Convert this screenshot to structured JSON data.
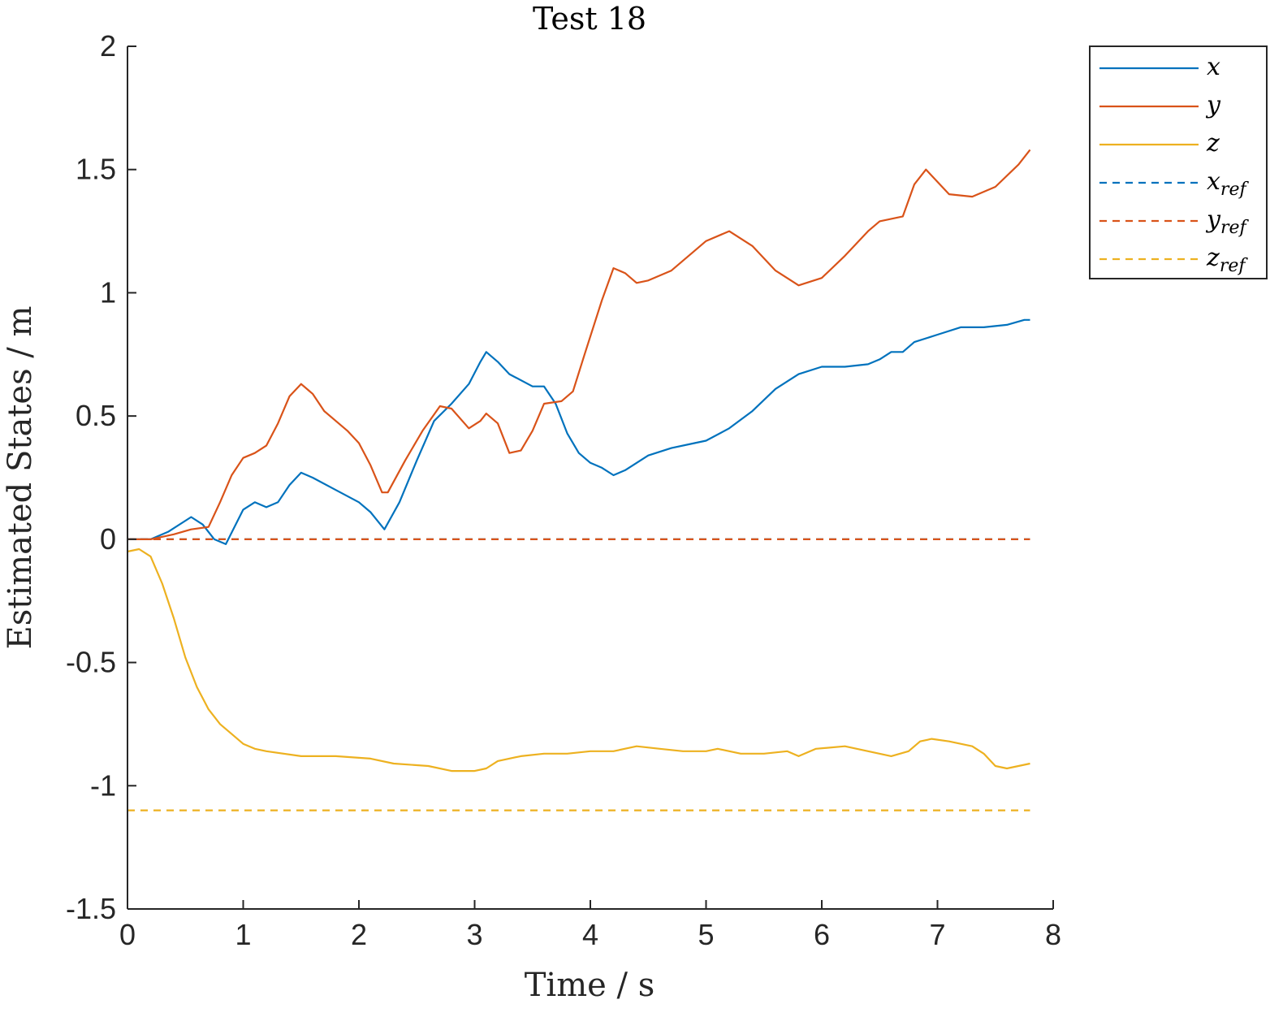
{
  "chart_data": {
    "type": "line",
    "title": "Test 18",
    "xlabel": "Time / s",
    "ylabel": "Estimated States / m",
    "xlim": [
      0,
      8
    ],
    "ylim": [
      -1.5,
      2
    ],
    "xticks": [
      "0",
      "1",
      "2",
      "3",
      "4",
      "5",
      "6",
      "7",
      "8"
    ],
    "yticks": [
      "2",
      "1.5",
      "1",
      "0.5",
      "0",
      "-0.5",
      "-1",
      "-1.5"
    ],
    "grid": false,
    "legend_position": "outside-top-right",
    "series": [
      {
        "name": "x",
        "legend_main": "x",
        "legend_sub": "",
        "color": "#0072BD",
        "style": "solid",
        "points": [
          [
            0,
            0
          ],
          [
            0.2,
            0.0
          ],
          [
            0.35,
            0.03
          ],
          [
            0.55,
            0.09
          ],
          [
            0.65,
            0.06
          ],
          [
            0.75,
            0.0
          ],
          [
            0.85,
            -0.02
          ],
          [
            1.0,
            0.12
          ],
          [
            1.1,
            0.15
          ],
          [
            1.2,
            0.13
          ],
          [
            1.3,
            0.15
          ],
          [
            1.4,
            0.22
          ],
          [
            1.5,
            0.27
          ],
          [
            1.6,
            0.25
          ],
          [
            1.8,
            0.2
          ],
          [
            2.0,
            0.15
          ],
          [
            2.1,
            0.11
          ],
          [
            2.22,
            0.04
          ],
          [
            2.35,
            0.15
          ],
          [
            2.5,
            0.32
          ],
          [
            2.65,
            0.48
          ],
          [
            2.8,
            0.55
          ],
          [
            2.95,
            0.63
          ],
          [
            3.05,
            0.72
          ],
          [
            3.1,
            0.76
          ],
          [
            3.2,
            0.72
          ],
          [
            3.3,
            0.67
          ],
          [
            3.5,
            0.62
          ],
          [
            3.6,
            0.62
          ],
          [
            3.7,
            0.55
          ],
          [
            3.8,
            0.43
          ],
          [
            3.9,
            0.35
          ],
          [
            4.0,
            0.31
          ],
          [
            4.1,
            0.29
          ],
          [
            4.2,
            0.26
          ],
          [
            4.3,
            0.28
          ],
          [
            4.5,
            0.34
          ],
          [
            4.7,
            0.37
          ],
          [
            4.9,
            0.39
          ],
          [
            5.0,
            0.4
          ],
          [
            5.2,
            0.45
          ],
          [
            5.4,
            0.52
          ],
          [
            5.6,
            0.61
          ],
          [
            5.8,
            0.67
          ],
          [
            6.0,
            0.7
          ],
          [
            6.2,
            0.7
          ],
          [
            6.4,
            0.71
          ],
          [
            6.5,
            0.73
          ],
          [
            6.6,
            0.76
          ],
          [
            6.7,
            0.76
          ],
          [
            6.8,
            0.8
          ],
          [
            7.0,
            0.83
          ],
          [
            7.2,
            0.86
          ],
          [
            7.4,
            0.86
          ],
          [
            7.6,
            0.87
          ],
          [
            7.75,
            0.89
          ],
          [
            7.8,
            0.89
          ]
        ]
      },
      {
        "name": "y",
        "legend_main": "y",
        "legend_sub": "",
        "color": "#D95319",
        "style": "solid",
        "points": [
          [
            0,
            0
          ],
          [
            0.2,
            0.0
          ],
          [
            0.4,
            0.02
          ],
          [
            0.55,
            0.04
          ],
          [
            0.7,
            0.05
          ],
          [
            0.8,
            0.15
          ],
          [
            0.9,
            0.26
          ],
          [
            1.0,
            0.33
          ],
          [
            1.1,
            0.35
          ],
          [
            1.2,
            0.38
          ],
          [
            1.3,
            0.47
          ],
          [
            1.4,
            0.58
          ],
          [
            1.5,
            0.63
          ],
          [
            1.6,
            0.59
          ],
          [
            1.7,
            0.52
          ],
          [
            1.9,
            0.44
          ],
          [
            2.0,
            0.39
          ],
          [
            2.1,
            0.3
          ],
          [
            2.2,
            0.19
          ],
          [
            2.25,
            0.19
          ],
          [
            2.4,
            0.32
          ],
          [
            2.55,
            0.44
          ],
          [
            2.7,
            0.54
          ],
          [
            2.8,
            0.53
          ],
          [
            2.95,
            0.45
          ],
          [
            3.05,
            0.48
          ],
          [
            3.1,
            0.51
          ],
          [
            3.2,
            0.47
          ],
          [
            3.3,
            0.35
          ],
          [
            3.4,
            0.36
          ],
          [
            3.5,
            0.44
          ],
          [
            3.6,
            0.55
          ],
          [
            3.75,
            0.56
          ],
          [
            3.85,
            0.6
          ],
          [
            3.95,
            0.75
          ],
          [
            4.1,
            0.97
          ],
          [
            4.2,
            1.1
          ],
          [
            4.3,
            1.08
          ],
          [
            4.4,
            1.04
          ],
          [
            4.5,
            1.05
          ],
          [
            4.7,
            1.09
          ],
          [
            4.9,
            1.17
          ],
          [
            5.0,
            1.21
          ],
          [
            5.2,
            1.25
          ],
          [
            5.4,
            1.19
          ],
          [
            5.6,
            1.09
          ],
          [
            5.8,
            1.03
          ],
          [
            6.0,
            1.06
          ],
          [
            6.2,
            1.15
          ],
          [
            6.4,
            1.25
          ],
          [
            6.5,
            1.29
          ],
          [
            6.7,
            1.31
          ],
          [
            6.8,
            1.44
          ],
          [
            6.9,
            1.5
          ],
          [
            7.0,
            1.45
          ],
          [
            7.1,
            1.4
          ],
          [
            7.3,
            1.39
          ],
          [
            7.5,
            1.43
          ],
          [
            7.7,
            1.52
          ],
          [
            7.8,
            1.58
          ]
        ]
      },
      {
        "name": "z",
        "legend_main": "z",
        "legend_sub": "",
        "color": "#EDB120",
        "style": "solid",
        "points": [
          [
            0,
            -0.05
          ],
          [
            0.1,
            -0.04
          ],
          [
            0.2,
            -0.07
          ],
          [
            0.3,
            -0.18
          ],
          [
            0.4,
            -0.32
          ],
          [
            0.5,
            -0.48
          ],
          [
            0.6,
            -0.6
          ],
          [
            0.7,
            -0.69
          ],
          [
            0.8,
            -0.75
          ],
          [
            0.9,
            -0.79
          ],
          [
            1.0,
            -0.83
          ],
          [
            1.1,
            -0.85
          ],
          [
            1.2,
            -0.86
          ],
          [
            1.5,
            -0.88
          ],
          [
            1.8,
            -0.88
          ],
          [
            2.1,
            -0.89
          ],
          [
            2.3,
            -0.91
          ],
          [
            2.6,
            -0.92
          ],
          [
            2.8,
            -0.94
          ],
          [
            3.0,
            -0.94
          ],
          [
            3.1,
            -0.93
          ],
          [
            3.2,
            -0.9
          ],
          [
            3.4,
            -0.88
          ],
          [
            3.6,
            -0.87
          ],
          [
            3.8,
            -0.87
          ],
          [
            4.0,
            -0.86
          ],
          [
            4.2,
            -0.86
          ],
          [
            4.4,
            -0.84
          ],
          [
            4.6,
            -0.85
          ],
          [
            4.8,
            -0.86
          ],
          [
            5.0,
            -0.86
          ],
          [
            5.1,
            -0.85
          ],
          [
            5.3,
            -0.87
          ],
          [
            5.5,
            -0.87
          ],
          [
            5.7,
            -0.86
          ],
          [
            5.8,
            -0.88
          ],
          [
            5.95,
            -0.85
          ],
          [
            6.2,
            -0.84
          ],
          [
            6.4,
            -0.86
          ],
          [
            6.6,
            -0.88
          ],
          [
            6.75,
            -0.86
          ],
          [
            6.85,
            -0.82
          ],
          [
            6.95,
            -0.81
          ],
          [
            7.1,
            -0.82
          ],
          [
            7.3,
            -0.84
          ],
          [
            7.4,
            -0.87
          ],
          [
            7.5,
            -0.92
          ],
          [
            7.6,
            -0.93
          ],
          [
            7.8,
            -0.91
          ]
        ]
      },
      {
        "name": "x_ref",
        "legend_main": "x",
        "legend_sub": "ref",
        "color": "#0072BD",
        "style": "dashed",
        "points": [
          [
            0,
            0
          ],
          [
            7.8,
            0
          ]
        ]
      },
      {
        "name": "y_ref",
        "legend_main": "y",
        "legend_sub": "ref",
        "color": "#D95319",
        "style": "dashed",
        "points": [
          [
            0,
            0
          ],
          [
            7.8,
            0
          ]
        ]
      },
      {
        "name": "z_ref",
        "legend_main": "z",
        "legend_sub": "ref",
        "color": "#EDB120",
        "style": "dashed",
        "points": [
          [
            0,
            -1.1
          ],
          [
            7.8,
            -1.1
          ]
        ]
      }
    ]
  }
}
